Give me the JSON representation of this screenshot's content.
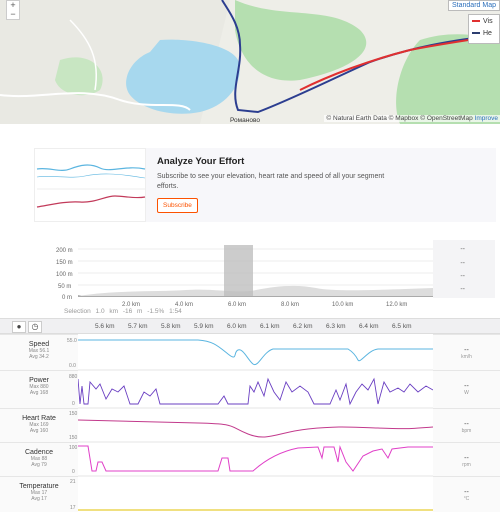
{
  "map": {
    "zoom_in": "+",
    "zoom_out": "−",
    "style_button": "Standard Map",
    "legend": [
      {
        "label": "Vis",
        "color": "#e03030"
      },
      {
        "label": "He",
        "color": "#2c3e70"
      }
    ],
    "attribution": [
      "© Natural Earth Data",
      "© Mapbox",
      "© OpenStreetMap"
    ],
    "improve": "Improve",
    "place_label": "Романово"
  },
  "upsell": {
    "title": "Analyze Your Effort",
    "text": "Subscribe to see your elevation, heart rate and speed of all your segment efforts.",
    "button": "Subscribe"
  },
  "overview": {
    "y_ticks": [
      "200 m",
      "150 m",
      "100 m",
      "50 m",
      "0 m"
    ],
    "x_ticks": [
      "2.0 km",
      "4.0 km",
      "6.0 km",
      "8.0 km",
      "10.0 km",
      "12.0 km"
    ],
    "side_values": [
      "--",
      "--",
      "--",
      "--"
    ],
    "selection": "Selection  1.0 km  -16 m  -1.5%  1:54"
  },
  "streams": {
    "km_ticks": [
      "5.6 km",
      "5.7 km",
      "5.8 km",
      "5.9 km",
      "6.0 km",
      "6.1 km",
      "6.2 km",
      "6.3 km",
      "6.4 km",
      "6.5 km"
    ],
    "rows": [
      {
        "title": "Speed",
        "max": "Max 56.1",
        "avg": "Avg 34.2",
        "value": "--",
        "unit": "km/h",
        "top": "55.0",
        "bottom": "0.0",
        "color": "#5bb5e0"
      },
      {
        "title": "Power",
        "max": "Max 880",
        "avg": "Avg 168",
        "value": "--",
        "unit": "W",
        "top": "880",
        "bottom": "0",
        "color": "#6a3fc2"
      },
      {
        "title": "Heart Rate",
        "max": "Max 169",
        "avg": "Avg 160",
        "value": "--",
        "unit": "bpm",
        "top": "150",
        "bottom": "150",
        "color": "#c23a8c"
      },
      {
        "title": "Cadence",
        "max": "Max 88",
        "avg": "Avg 79",
        "value": "--",
        "unit": "rpm",
        "top": "100",
        "bottom": "0",
        "color": "#e040c8"
      },
      {
        "title": "Temperature",
        "max": "Max 17",
        "avg": "Avg 17",
        "value": "--",
        "unit": "°C",
        "top": "21",
        "bottom": "17",
        "color": "#e0c000"
      }
    ]
  }
}
